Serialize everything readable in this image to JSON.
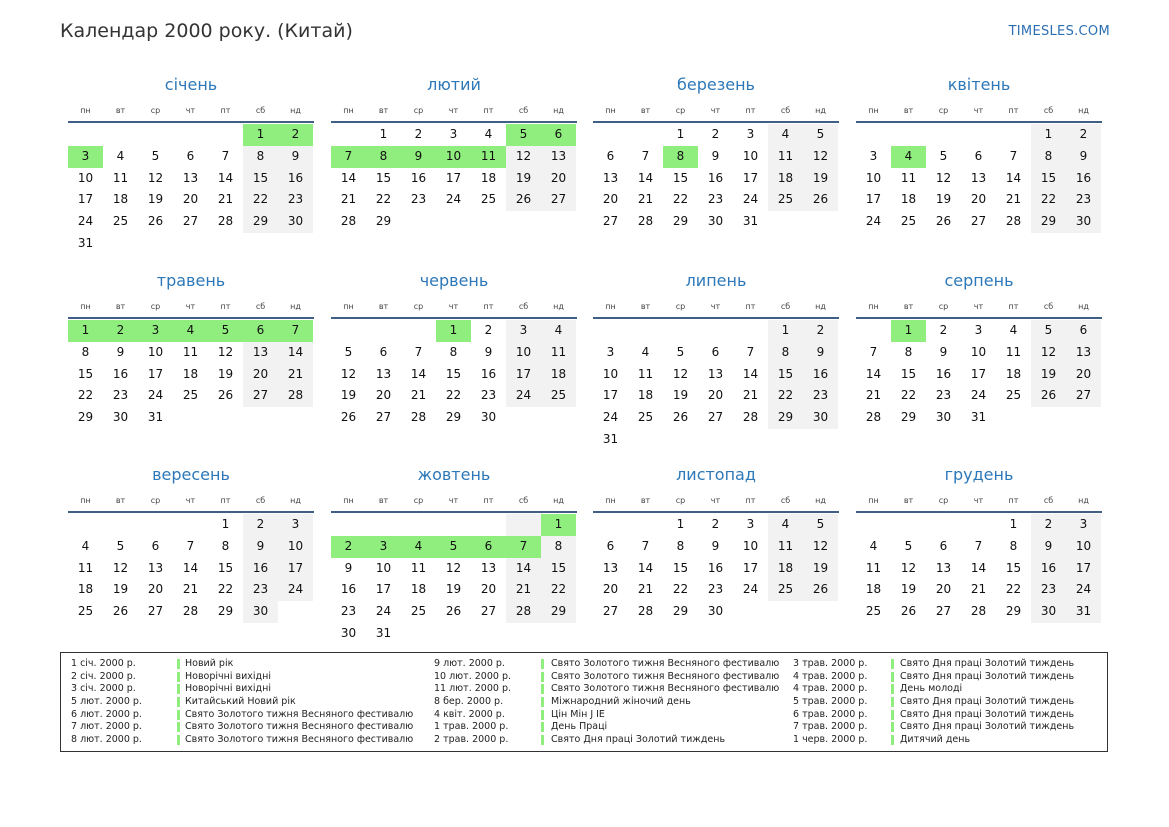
{
  "title": "Календар 2000 року. (Китай)",
  "brand": "TIMESLES.COM",
  "colors": {
    "holiday": "#90ee7e",
    "weekend": "#f2f2f2",
    "month_name": "#2d78b8"
  },
  "weekdays": [
    "пн",
    "вт",
    "ср",
    "чт",
    "пт",
    "сб",
    "нд"
  ],
  "months": [
    {
      "name": "січень",
      "weeks": [
        [
          "",
          "",
          "",
          "",
          "",
          "1",
          "2"
        ],
        [
          "3",
          "4",
          "5",
          "6",
          "7",
          "8",
          "9"
        ],
        [
          "10",
          "11",
          "12",
          "13",
          "14",
          "15",
          "16"
        ],
        [
          "17",
          "18",
          "19",
          "20",
          "21",
          "22",
          "23"
        ],
        [
          "24",
          "25",
          "26",
          "27",
          "28",
          "29",
          "30"
        ],
        [
          "31",
          "",
          "",
          "",
          "",
          "",
          ""
        ]
      ],
      "holidays": [
        "1",
        "2",
        "3"
      ]
    },
    {
      "name": "лютий",
      "weeks": [
        [
          "",
          "1",
          "2",
          "3",
          "4",
          "5",
          "6"
        ],
        [
          "7",
          "8",
          "9",
          "10",
          "11",
          "12",
          "13"
        ],
        [
          "14",
          "15",
          "16",
          "17",
          "18",
          "19",
          "20"
        ],
        [
          "21",
          "22",
          "23",
          "24",
          "25",
          "26",
          "27"
        ],
        [
          "28",
          "29",
          "",
          "",
          "",
          "",
          ""
        ]
      ],
      "holidays": [
        "5",
        "6",
        "7",
        "8",
        "9",
        "10",
        "11"
      ]
    },
    {
      "name": "березень",
      "weeks": [
        [
          "",
          "",
          "1",
          "2",
          "3",
          "4",
          "5"
        ],
        [
          "6",
          "7",
          "8",
          "9",
          "10",
          "11",
          "12"
        ],
        [
          "13",
          "14",
          "15",
          "16",
          "17",
          "18",
          "19"
        ],
        [
          "20",
          "21",
          "22",
          "23",
          "24",
          "25",
          "26"
        ],
        [
          "27",
          "28",
          "29",
          "30",
          "31",
          "",
          ""
        ]
      ],
      "holidays": [
        "8"
      ]
    },
    {
      "name": "квітень",
      "weeks": [
        [
          "",
          "",
          "",
          "",
          "",
          "1",
          "2"
        ],
        [
          "3",
          "4",
          "5",
          "6",
          "7",
          "8",
          "9"
        ],
        [
          "10",
          "11",
          "12",
          "13",
          "14",
          "15",
          "16"
        ],
        [
          "17",
          "18",
          "19",
          "20",
          "21",
          "22",
          "23"
        ],
        [
          "24",
          "25",
          "26",
          "27",
          "28",
          "29",
          "30"
        ]
      ],
      "holidays": [
        "4"
      ]
    },
    {
      "name": "травень",
      "weeks": [
        [
          "1",
          "2",
          "3",
          "4",
          "5",
          "6",
          "7"
        ],
        [
          "8",
          "9",
          "10",
          "11",
          "12",
          "13",
          "14"
        ],
        [
          "15",
          "16",
          "17",
          "18",
          "19",
          "20",
          "21"
        ],
        [
          "22",
          "23",
          "24",
          "25",
          "26",
          "27",
          "28"
        ],
        [
          "29",
          "30",
          "31",
          "",
          "",
          "",
          ""
        ]
      ],
      "holidays": [
        "1",
        "2",
        "3",
        "4",
        "5",
        "6",
        "7"
      ]
    },
    {
      "name": "червень",
      "weeks": [
        [
          "",
          "",
          "",
          "1",
          "2",
          "3",
          "4"
        ],
        [
          "5",
          "6",
          "7",
          "8",
          "9",
          "10",
          "11"
        ],
        [
          "12",
          "13",
          "14",
          "15",
          "16",
          "17",
          "18"
        ],
        [
          "19",
          "20",
          "21",
          "22",
          "23",
          "24",
          "25"
        ],
        [
          "26",
          "27",
          "28",
          "29",
          "30",
          "",
          ""
        ]
      ],
      "holidays": [
        "1"
      ]
    },
    {
      "name": "липень",
      "weeks": [
        [
          "",
          "",
          "",
          "",
          "",
          "1",
          "2"
        ],
        [
          "3",
          "4",
          "5",
          "6",
          "7",
          "8",
          "9"
        ],
        [
          "10",
          "11",
          "12",
          "13",
          "14",
          "15",
          "16"
        ],
        [
          "17",
          "18",
          "19",
          "20",
          "21",
          "22",
          "23"
        ],
        [
          "24",
          "25",
          "26",
          "27",
          "28",
          "29",
          "30"
        ],
        [
          "31",
          "",
          "",
          "",
          "",
          "",
          ""
        ]
      ],
      "holidays": []
    },
    {
      "name": "серпень",
      "weeks": [
        [
          "",
          "1",
          "2",
          "3",
          "4",
          "5",
          "6"
        ],
        [
          "7",
          "8",
          "9",
          "10",
          "11",
          "12",
          "13"
        ],
        [
          "14",
          "15",
          "16",
          "17",
          "18",
          "19",
          "20"
        ],
        [
          "21",
          "22",
          "23",
          "24",
          "25",
          "26",
          "27"
        ],
        [
          "28",
          "29",
          "30",
          "31",
          "",
          "",
          ""
        ]
      ],
      "holidays": [
        "1"
      ]
    },
    {
      "name": "вересень",
      "weeks": [
        [
          "",
          "",
          "",
          "",
          "1",
          "2",
          "3"
        ],
        [
          "4",
          "5",
          "6",
          "7",
          "8",
          "9",
          "10"
        ],
        [
          "11",
          "12",
          "13",
          "14",
          "15",
          "16",
          "17"
        ],
        [
          "18",
          "19",
          "20",
          "21",
          "22",
          "23",
          "24"
        ],
        [
          "25",
          "26",
          "27",
          "28",
          "29",
          "30",
          ""
        ]
      ],
      "holidays": []
    },
    {
      "name": "жовтень",
      "weeks": [
        [
          "",
          "",
          "",
          "",
          "",
          "",
          "1"
        ],
        [
          "2",
          "3",
          "4",
          "5",
          "6",
          "7",
          "8"
        ],
        [
          "9",
          "10",
          "11",
          "12",
          "13",
          "14",
          "15"
        ],
        [
          "16",
          "17",
          "18",
          "19",
          "20",
          "21",
          "22"
        ],
        [
          "23",
          "24",
          "25",
          "26",
          "27",
          "28",
          "29"
        ],
        [
          "30",
          "31",
          "",
          "",
          "",
          "",
          ""
        ]
      ],
      "holidays": [
        "1",
        "2",
        "3",
        "4",
        "5",
        "6",
        "7"
      ]
    },
    {
      "name": "листопад",
      "weeks": [
        [
          "",
          "",
          "1",
          "2",
          "3",
          "4",
          "5"
        ],
        [
          "6",
          "7",
          "8",
          "9",
          "10",
          "11",
          "12"
        ],
        [
          "13",
          "14",
          "15",
          "16",
          "17",
          "18",
          "19"
        ],
        [
          "20",
          "21",
          "22",
          "23",
          "24",
          "25",
          "26"
        ],
        [
          "27",
          "28",
          "29",
          "30",
          "",
          "",
          ""
        ]
      ],
      "holidays": []
    },
    {
      "name": "грудень",
      "weeks": [
        [
          "",
          "",
          "",
          "",
          "1",
          "2",
          "3"
        ],
        [
          "4",
          "5",
          "6",
          "7",
          "8",
          "9",
          "10"
        ],
        [
          "11",
          "12",
          "13",
          "14",
          "15",
          "16",
          "17"
        ],
        [
          "18",
          "19",
          "20",
          "21",
          "22",
          "23",
          "24"
        ],
        [
          "25",
          "26",
          "27",
          "28",
          "29",
          "30",
          "31"
        ]
      ],
      "holidays": []
    }
  ],
  "legend": [
    [
      {
        "date": "1 січ. 2000 р.",
        "name": "Новий рік"
      },
      {
        "date": "2 січ. 2000 р.",
        "name": "Новорічні вихідні"
      },
      {
        "date": "3 січ. 2000 р.",
        "name": "Новорічні вихідні"
      },
      {
        "date": "5 лют. 2000 р.",
        "name": "Китайський Новий рік"
      },
      {
        "date": "6 лют. 2000 р.",
        "name": "Свято Золотого тижня Весняного фестивалю"
      },
      {
        "date": "7 лют. 2000 р.",
        "name": "Свято Золотого тижня Весняного фестивалю"
      },
      {
        "date": "8 лют. 2000 р.",
        "name": "Свято Золотого тижня Весняного фестивалю"
      }
    ],
    [
      {
        "date": "9 лют. 2000 р.",
        "name": "Свято Золотого тижня Весняного фестивалю"
      },
      {
        "date": "10 лют. 2000 р.",
        "name": "Свято Золотого тижня Весняного фестивалю"
      },
      {
        "date": "11 лют. 2000 р.",
        "name": "Свято Золотого тижня Весняного фестивалю"
      },
      {
        "date": "8 бер. 2000 р.",
        "name": "Міжнародний жіночий день"
      },
      {
        "date": "4 квіт. 2000 р.",
        "name": "Цін Мін J IE"
      },
      {
        "date": "1 трав. 2000 р.",
        "name": "День Праці"
      },
      {
        "date": "2 трав. 2000 р.",
        "name": "Свято Дня праці Золотий тиждень"
      }
    ],
    [
      {
        "date": "3 трав. 2000 р.",
        "name": "Свято Дня праці Золотий тиждень"
      },
      {
        "date": "4 трав. 2000 р.",
        "name": "Свято Дня праці Золотий тиждень"
      },
      {
        "date": "4 трав. 2000 р.",
        "name": "День молоді"
      },
      {
        "date": "5 трав. 2000 р.",
        "name": "Свято Дня праці Золотий тиждень"
      },
      {
        "date": "6 трав. 2000 р.",
        "name": "Свято Дня праці Золотий тиждень"
      },
      {
        "date": "7 трав. 2000 р.",
        "name": "Свято Дня праці Золотий тиждень"
      },
      {
        "date": "1 черв. 2000 р.",
        "name": "Дитячий день"
      }
    ]
  ]
}
